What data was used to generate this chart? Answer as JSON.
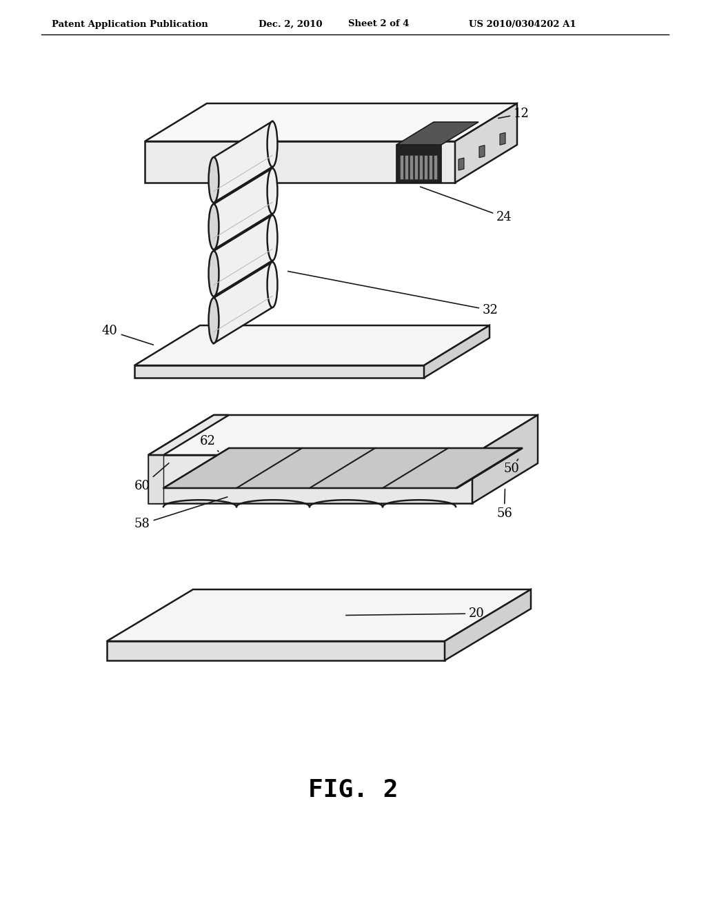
{
  "bg_color": "#ffffff",
  "line_color": "#1a1a1a",
  "header_text": "Patent Application Publication",
  "header_date": "Dec. 2, 2010",
  "header_sheet": "Sheet 2 of 4",
  "header_patent": "US 2010/0304202 A1",
  "fig_label": "FIG. 2",
  "component_colors": {
    "top_face": "#f8f8f8",
    "front_face": "#ebebeb",
    "right_face": "#d8d8d8",
    "inner_face": "#e0e0e0",
    "connector_dark": "#222222",
    "connector_mid": "#555555",
    "cylinder_body": "#f0f0f0",
    "cylinder_shade": "#d8d8d8",
    "tray_top": "#f5f5f5",
    "tray_front": "#e8e8e8",
    "tray_right": "#d0d0d0",
    "tray_groove": "#c8c8c8",
    "plate_top": "#f5f5f5",
    "plate_front": "#e0e0e0",
    "plate_right": "#d0d0d0"
  }
}
